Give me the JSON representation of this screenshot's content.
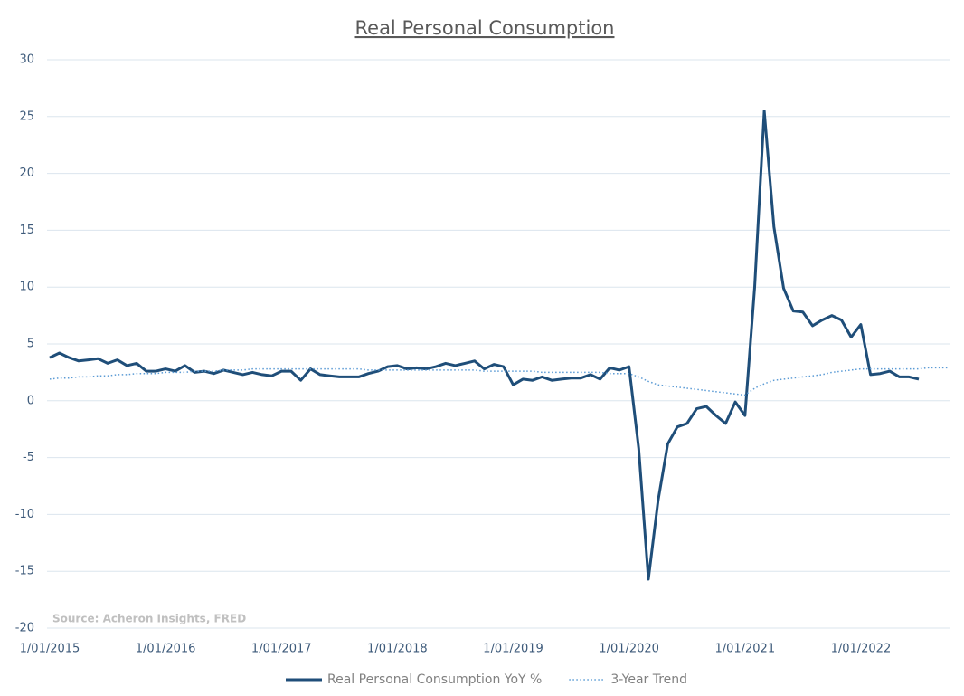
{
  "chart_data": {
    "type": "line",
    "title": "Real Personal Consumption",
    "annotation": "Source: Acheron Insights, FRED",
    "categories": [
      "1/01/2015",
      null,
      null,
      null,
      null,
      null,
      null,
      null,
      null,
      null,
      null,
      null,
      "1/01/2016",
      null,
      null,
      null,
      null,
      null,
      null,
      null,
      null,
      null,
      null,
      null,
      "1/01/2017",
      null,
      null,
      null,
      null,
      null,
      null,
      null,
      null,
      null,
      null,
      null,
      "1/01/2018",
      null,
      null,
      null,
      null,
      null,
      null,
      null,
      null,
      null,
      null,
      null,
      "1/01/2019",
      null,
      null,
      null,
      null,
      null,
      null,
      null,
      null,
      null,
      null,
      null,
      "1/01/2020",
      null,
      null,
      null,
      null,
      null,
      null,
      null,
      null,
      null,
      null,
      null,
      "1/01/2021",
      null,
      null,
      null,
      null,
      null,
      null,
      null,
      null,
      null,
      null,
      null,
      "1/01/2022",
      null,
      null,
      null,
      null,
      null,
      null,
      null,
      null,
      null
    ],
    "series": [
      {
        "name": "Real Personal Consumption YoY %",
        "color": "#1f4e79",
        "style": "solid",
        "values": [
          3.8,
          4.2,
          3.8,
          3.5,
          3.6,
          3.7,
          3.3,
          3.6,
          3.1,
          3.3,
          2.6,
          2.6,
          2.8,
          2.6,
          3.1,
          2.5,
          2.6,
          2.4,
          2.7,
          2.5,
          2.3,
          2.5,
          2.3,
          2.2,
          2.6,
          2.6,
          1.8,
          2.8,
          2.3,
          2.2,
          2.1,
          2.1,
          2.1,
          2.4,
          2.6,
          3.0,
          3.1,
          2.8,
          2.9,
          2.8,
          3.0,
          3.3,
          3.1,
          3.3,
          3.5,
          2.8,
          3.2,
          3.0,
          1.4,
          1.9,
          1.8,
          2.1,
          1.8,
          1.9,
          2.0,
          2.0,
          2.3,
          1.9,
          2.9,
          2.7,
          3.0,
          -4.2,
          -15.7,
          -8.8,
          -3.8,
          -2.3,
          -2.0,
          -0.7,
          -0.5,
          -1.3,
          -2.0,
          -0.1,
          -1.3,
          10.0,
          25.5,
          15.3,
          9.9,
          7.9,
          7.8,
          6.6,
          7.1,
          7.5,
          7.1,
          5.6,
          6.7,
          2.3,
          2.4,
          2.6,
          2.1,
          2.1,
          1.9,
          null,
          null,
          null
        ]
      },
      {
        "name": "3-Year Trend",
        "color": "#5b9bd5",
        "style": "dotted",
        "values": [
          1.9,
          2.0,
          2.0,
          2.1,
          2.1,
          2.2,
          2.2,
          2.3,
          2.3,
          2.4,
          2.4,
          2.4,
          2.5,
          2.5,
          2.5,
          2.6,
          2.6,
          2.6,
          2.7,
          2.7,
          2.7,
          2.8,
          2.8,
          2.8,
          2.8,
          2.8,
          2.8,
          2.8,
          2.8,
          2.8,
          2.8,
          2.8,
          2.8,
          2.7,
          2.7,
          2.7,
          2.7,
          2.7,
          2.7,
          2.7,
          2.7,
          2.7,
          2.7,
          2.7,
          2.7,
          2.6,
          2.6,
          2.6,
          2.6,
          2.6,
          2.6,
          2.5,
          2.5,
          2.5,
          2.5,
          2.5,
          2.5,
          2.5,
          2.4,
          2.4,
          2.4,
          2.1,
          1.7,
          1.4,
          1.3,
          1.2,
          1.1,
          1.0,
          0.9,
          0.8,
          0.7,
          0.6,
          0.5,
          1.1,
          1.5,
          1.8,
          1.9,
          2.0,
          2.1,
          2.2,
          2.3,
          2.5,
          2.6,
          2.7,
          2.8,
          2.8,
          2.8,
          2.8,
          2.8,
          2.8,
          2.8,
          2.9,
          2.9,
          2.9
        ]
      }
    ],
    "ylim": [
      -20,
      30
    ],
    "yticks": [
      -20,
      -15,
      -10,
      -5,
      0,
      5,
      10,
      15,
      20,
      25,
      30
    ],
    "grid": true,
    "legend": "bottom"
  }
}
